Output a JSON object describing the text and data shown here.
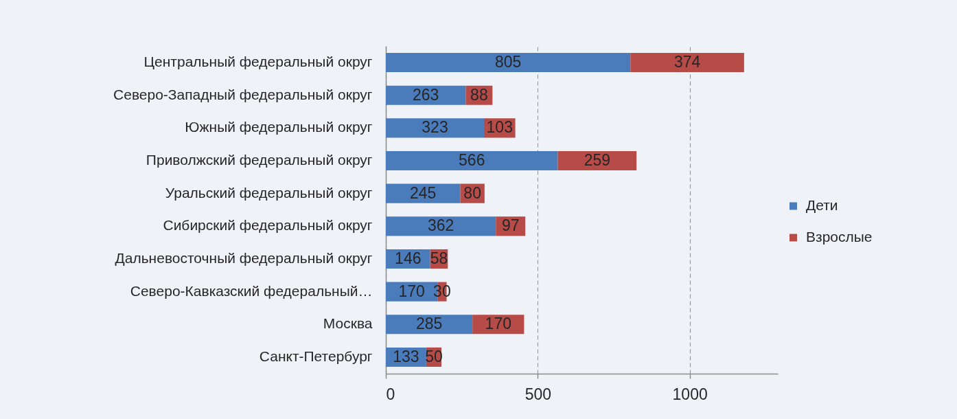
{
  "chart_data": {
    "type": "bar",
    "orientation": "horizontal",
    "stacked": true,
    "categories": [
      "Центральный федеральный округ",
      "Северо-Западный федеральный округ",
      "Южный федеральный округ",
      "Приволжский федеральный округ",
      "Уральский федеральный округ",
      "Сибирский федеральный округ",
      "Дальневосточный федеральный округ",
      "Северо-Кавказский федеральный…",
      "Москва",
      "Санкт-Петербург"
    ],
    "series": [
      {
        "name": "Дети",
        "color": "#4a7bbb",
        "values": [
          805,
          263,
          323,
          566,
          245,
          362,
          146,
          170,
          285,
          133
        ]
      },
      {
        "name": "Взрослые",
        "color": "#b64b48",
        "values": [
          374,
          88,
          103,
          259,
          80,
          97,
          58,
          30,
          170,
          50
        ]
      }
    ],
    "xlim": [
      0,
      1290
    ],
    "xticks": [
      0,
      500,
      1000
    ],
    "grid": "x",
    "legend": "right",
    "data_labels": true
  }
}
